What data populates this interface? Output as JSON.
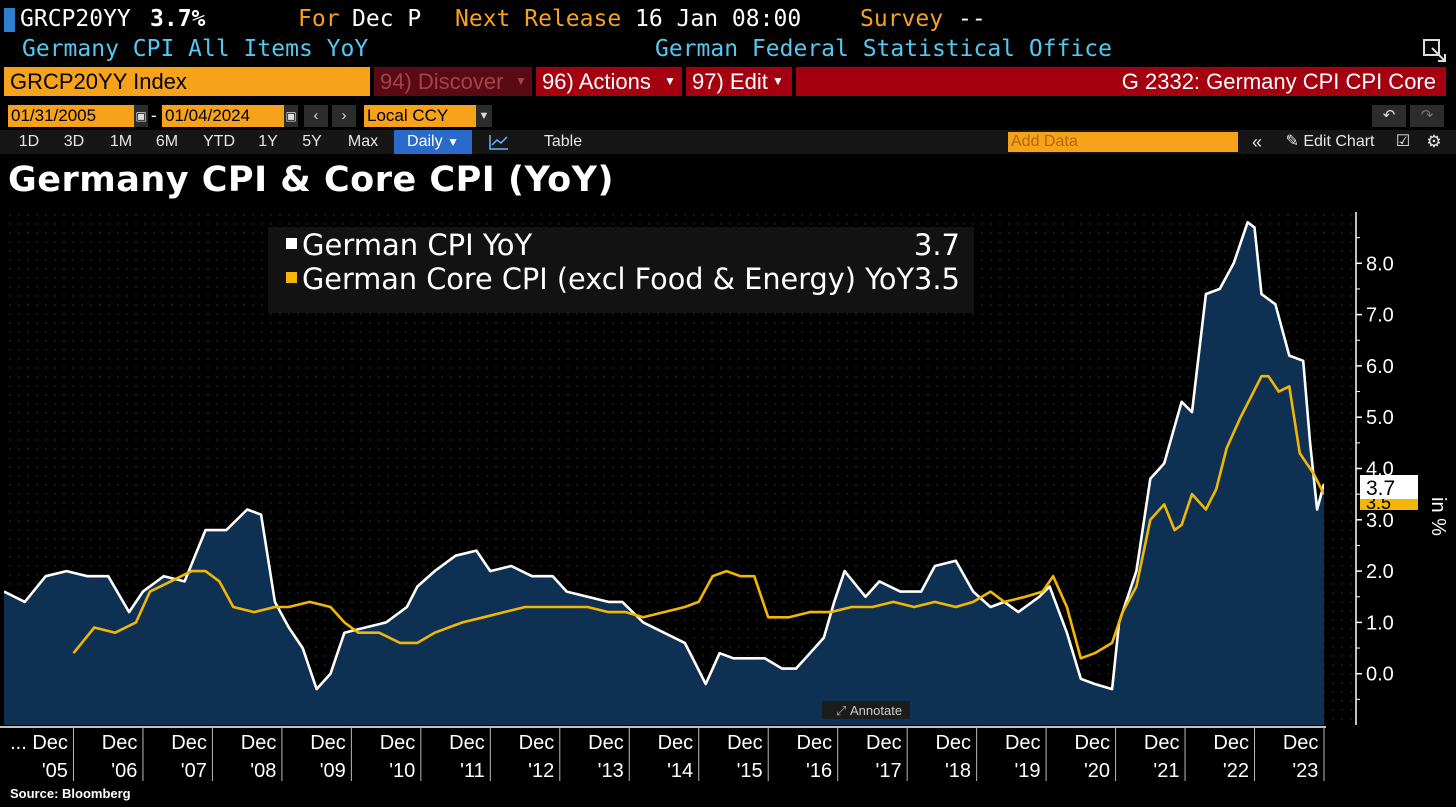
{
  "header": {
    "ticker": "GRCP20YY",
    "value": "3.7%",
    "for_label": "For",
    "for_value": "Dec P",
    "next_release_label": "Next Release",
    "next_release_value": "16 Jan 08:00",
    "survey_label": "Survey",
    "survey_value": "--",
    "description": "Germany CPI All Items YoY",
    "source_org": "German Federal Statistical Office"
  },
  "toolbar": {
    "security": "GRCP20YY Index",
    "discover": "94) Discover",
    "actions": "96) Actions",
    "edit": "97) Edit",
    "function_title": "G 2332: Germany CPI CPI Core",
    "start_date": "01/31/2005",
    "end_date": "01/04/2024",
    "date_separator": "-",
    "currency": "Local CCY",
    "periods": [
      "1D",
      "3D",
      "1M",
      "6M",
      "YTD",
      "1Y",
      "5Y",
      "Max"
    ],
    "frequency": "Daily",
    "table_label": "Table",
    "add_data_placeholder": "Add Data",
    "edit_chart": "Edit Chart",
    "annotate": "Annotate"
  },
  "source_note": "Source: Bloomberg",
  "colors": {
    "cpi": "#ffffff",
    "core": "#f2b705",
    "area": "#0f3457",
    "background": "#000000",
    "orange": "#f7a21b",
    "red": "#a4000f",
    "cyan": "#55c8f0"
  },
  "chart_data": {
    "type": "line",
    "title": "Germany CPI & Core CPI (YoY)",
    "ylabel": "in %",
    "ylim": [
      -1.0,
      9.0
    ],
    "yticks": [
      0.0,
      1.0,
      2.0,
      3.0,
      4.0,
      5.0,
      6.0,
      7.0,
      8.0
    ],
    "ytick_labels": [
      "0.0",
      "1.0",
      "2.0",
      "3.0",
      "4.0",
      "5.0",
      "6.0",
      "7.0",
      "8.0"
    ],
    "x_start_year": 2005.0,
    "x_end_year": 2024.0,
    "x_month_labels": [
      "... Dec",
      "Dec",
      "Dec",
      "Dec",
      "Dec",
      "Dec",
      "Dec",
      "Dec",
      "Dec",
      "Dec",
      "Dec",
      "Dec",
      "Dec",
      "Dec",
      "Dec",
      "Dec",
      "Dec",
      "Dec",
      "Dec"
    ],
    "x_year_labels": [
      "'05",
      "'06",
      "'07",
      "'08",
      "'09",
      "'10",
      "'11",
      "'12",
      "'13",
      "'14",
      "'15",
      "'16",
      "'17",
      "'18",
      "'19",
      "'20",
      "'21",
      "'22",
      "'23"
    ],
    "series": [
      {
        "name": "German CPI YoY",
        "last_value": "3.7",
        "area": true,
        "points": [
          [
            2005.0,
            1.6
          ],
          [
            2005.3,
            1.4
          ],
          [
            2005.6,
            1.9
          ],
          [
            2005.9,
            2.0
          ],
          [
            2006.2,
            1.9
          ],
          [
            2006.5,
            1.9
          ],
          [
            2006.8,
            1.2
          ],
          [
            2007.0,
            1.6
          ],
          [
            2007.3,
            1.9
          ],
          [
            2007.6,
            1.8
          ],
          [
            2007.9,
            2.8
          ],
          [
            2008.2,
            2.8
          ],
          [
            2008.5,
            3.2
          ],
          [
            2008.7,
            3.1
          ],
          [
            2008.9,
            1.4
          ],
          [
            2009.1,
            0.9
          ],
          [
            2009.3,
            0.5
          ],
          [
            2009.5,
            -0.3
          ],
          [
            2009.7,
            0.0
          ],
          [
            2009.9,
            0.8
          ],
          [
            2010.2,
            0.9
          ],
          [
            2010.5,
            1.0
          ],
          [
            2010.8,
            1.3
          ],
          [
            2010.95,
            1.7
          ],
          [
            2011.2,
            2.0
          ],
          [
            2011.5,
            2.3
          ],
          [
            2011.8,
            2.4
          ],
          [
            2012.0,
            2.0
          ],
          [
            2012.3,
            2.1
          ],
          [
            2012.6,
            1.9
          ],
          [
            2012.9,
            1.9
          ],
          [
            2013.1,
            1.6
          ],
          [
            2013.4,
            1.5
          ],
          [
            2013.7,
            1.4
          ],
          [
            2013.9,
            1.4
          ],
          [
            2014.2,
            1.0
          ],
          [
            2014.5,
            0.8
          ],
          [
            2014.8,
            0.6
          ],
          [
            2014.95,
            0.2
          ],
          [
            2015.1,
            -0.2
          ],
          [
            2015.3,
            0.4
          ],
          [
            2015.5,
            0.3
          ],
          [
            2015.8,
            0.3
          ],
          [
            2015.95,
            0.3
          ],
          [
            2016.2,
            0.1
          ],
          [
            2016.4,
            0.1
          ],
          [
            2016.6,
            0.4
          ],
          [
            2016.8,
            0.7
          ],
          [
            2016.95,
            1.4
          ],
          [
            2017.1,
            2.0
          ],
          [
            2017.4,
            1.5
          ],
          [
            2017.6,
            1.8
          ],
          [
            2017.9,
            1.6
          ],
          [
            2018.2,
            1.6
          ],
          [
            2018.4,
            2.1
          ],
          [
            2018.7,
            2.2
          ],
          [
            2018.95,
            1.6
          ],
          [
            2019.2,
            1.3
          ],
          [
            2019.4,
            1.4
          ],
          [
            2019.6,
            1.2
          ],
          [
            2019.9,
            1.5
          ],
          [
            2020.05,
            1.7
          ],
          [
            2020.3,
            0.8
          ],
          [
            2020.5,
            -0.1
          ],
          [
            2020.7,
            -0.2
          ],
          [
            2020.95,
            -0.3
          ],
          [
            2021.05,
            1.0
          ],
          [
            2021.3,
            2.0
          ],
          [
            2021.5,
            3.8
          ],
          [
            2021.7,
            4.1
          ],
          [
            2021.95,
            5.3
          ],
          [
            2022.1,
            5.1
          ],
          [
            2022.3,
            7.4
          ],
          [
            2022.5,
            7.5
          ],
          [
            2022.7,
            8.0
          ],
          [
            2022.9,
            8.8
          ],
          [
            2023.0,
            8.7
          ],
          [
            2023.1,
            7.4
          ],
          [
            2023.3,
            7.2
          ],
          [
            2023.5,
            6.2
          ],
          [
            2023.7,
            6.1
          ],
          [
            2023.8,
            4.5
          ],
          [
            2023.9,
            3.2
          ],
          [
            2024.0,
            3.7
          ]
        ]
      },
      {
        "name": "German Core CPI (excl Food & Energy) YoY",
        "last_value": "3.5",
        "area": false,
        "points": [
          [
            2006.0,
            0.4
          ],
          [
            2006.3,
            0.9
          ],
          [
            2006.6,
            0.8
          ],
          [
            2006.9,
            1.0
          ],
          [
            2007.1,
            1.6
          ],
          [
            2007.4,
            1.8
          ],
          [
            2007.7,
            2.0
          ],
          [
            2007.9,
            2.0
          ],
          [
            2008.1,
            1.8
          ],
          [
            2008.3,
            1.3
          ],
          [
            2008.6,
            1.2
          ],
          [
            2008.9,
            1.3
          ],
          [
            2009.1,
            1.3
          ],
          [
            2009.4,
            1.4
          ],
          [
            2009.7,
            1.3
          ],
          [
            2009.9,
            1.0
          ],
          [
            2010.1,
            0.8
          ],
          [
            2010.4,
            0.8
          ],
          [
            2010.7,
            0.6
          ],
          [
            2010.95,
            0.6
          ],
          [
            2011.2,
            0.8
          ],
          [
            2011.6,
            1.0
          ],
          [
            2011.9,
            1.1
          ],
          [
            2012.2,
            1.2
          ],
          [
            2012.5,
            1.3
          ],
          [
            2012.8,
            1.3
          ],
          [
            2013.1,
            1.3
          ],
          [
            2013.4,
            1.3
          ],
          [
            2013.7,
            1.2
          ],
          [
            2013.95,
            1.2
          ],
          [
            2014.2,
            1.1
          ],
          [
            2014.5,
            1.2
          ],
          [
            2014.8,
            1.3
          ],
          [
            2015.0,
            1.4
          ],
          [
            2015.2,
            1.9
          ],
          [
            2015.4,
            2.0
          ],
          [
            2015.6,
            1.9
          ],
          [
            2015.8,
            1.9
          ],
          [
            2016.0,
            1.1
          ],
          [
            2016.3,
            1.1
          ],
          [
            2016.6,
            1.2
          ],
          [
            2016.9,
            1.2
          ],
          [
            2017.2,
            1.3
          ],
          [
            2017.5,
            1.3
          ],
          [
            2017.8,
            1.4
          ],
          [
            2018.1,
            1.3
          ],
          [
            2018.4,
            1.4
          ],
          [
            2018.7,
            1.3
          ],
          [
            2018.95,
            1.4
          ],
          [
            2019.2,
            1.6
          ],
          [
            2019.4,
            1.4
          ],
          [
            2019.7,
            1.5
          ],
          [
            2019.95,
            1.6
          ],
          [
            2020.1,
            1.9
          ],
          [
            2020.3,
            1.3
          ],
          [
            2020.5,
            0.3
          ],
          [
            2020.7,
            0.4
          ],
          [
            2020.95,
            0.6
          ],
          [
            2021.1,
            1.2
          ],
          [
            2021.3,
            1.7
          ],
          [
            2021.5,
            3.0
          ],
          [
            2021.7,
            3.3
          ],
          [
            2021.85,
            2.8
          ],
          [
            2021.95,
            2.9
          ],
          [
            2022.1,
            3.5
          ],
          [
            2022.3,
            3.2
          ],
          [
            2022.45,
            3.6
          ],
          [
            2022.6,
            4.4
          ],
          [
            2022.8,
            5.0
          ],
          [
            2022.95,
            5.4
          ],
          [
            2023.1,
            5.8
          ],
          [
            2023.2,
            5.8
          ],
          [
            2023.35,
            5.5
          ],
          [
            2023.5,
            5.6
          ],
          [
            2023.65,
            4.3
          ],
          [
            2023.85,
            3.9
          ],
          [
            2024.0,
            3.5
          ]
        ]
      }
    ]
  }
}
